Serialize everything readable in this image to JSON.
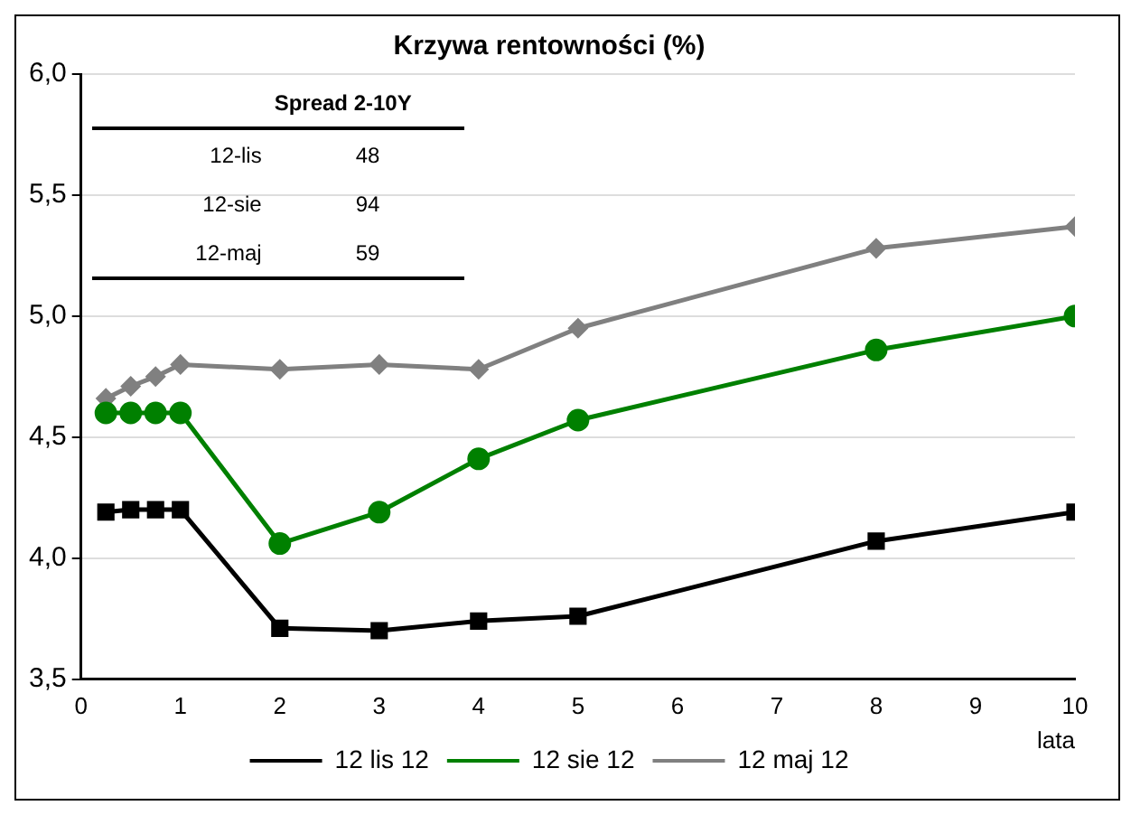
{
  "chart_data": {
    "type": "line",
    "title": "Krzywa rentowności (%)",
    "xlabel": "lata",
    "x": [
      0.25,
      0.5,
      0.75,
      1,
      2,
      3,
      4,
      5,
      8,
      10
    ],
    "series": [
      {
        "name": "12 lis 12",
        "color": "#000000",
        "marker": "square",
        "values": [
          4.19,
          4.2,
          4.2,
          4.2,
          3.71,
          3.7,
          3.74,
          3.76,
          4.07,
          4.19
        ]
      },
      {
        "name": "12 sie 12",
        "color": "#008000",
        "marker": "circle",
        "values": [
          4.6,
          4.6,
          4.6,
          4.6,
          4.06,
          4.19,
          4.41,
          4.57,
          4.86,
          5.0
        ]
      },
      {
        "name": "12 maj 12",
        "color": "#808080",
        "marker": "diamond",
        "values": [
          4.66,
          4.71,
          4.75,
          4.8,
          4.78,
          4.8,
          4.78,
          4.95,
          5.28,
          5.37
        ]
      }
    ],
    "xlim": [
      0,
      10
    ],
    "xticks": [
      0,
      1,
      2,
      3,
      4,
      5,
      6,
      7,
      8,
      9,
      10
    ],
    "ylim": [
      3.5,
      6
    ],
    "yticks": [
      {
        "value": 3.5,
        "label": "3,5"
      },
      {
        "value": 4,
        "label": "4,0"
      },
      {
        "value": 4.5,
        "label": "4,5"
      },
      {
        "value": 5,
        "label": "5,0"
      },
      {
        "value": 5.5,
        "label": "5,5"
      },
      {
        "value": 6,
        "label": "6,0"
      }
    ],
    "grid": "y",
    "legend": "bottom",
    "annotations": [
      "Spread 2-10Y",
      "12-lis",
      "48",
      "12-sie",
      "94",
      "12-maj",
      "59"
    ]
  }
}
